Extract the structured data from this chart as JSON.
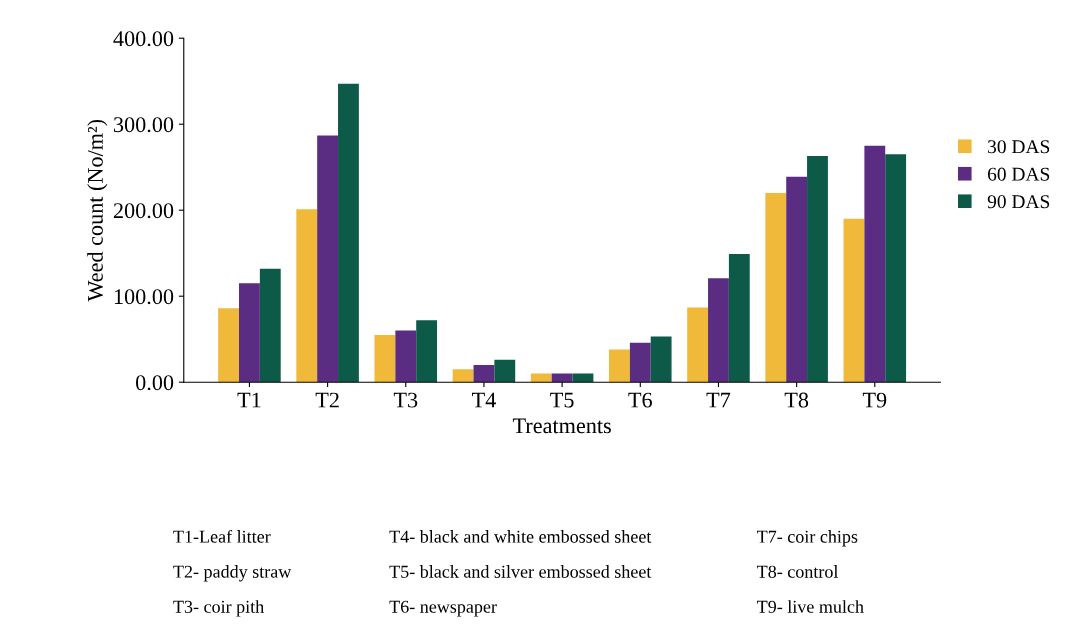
{
  "chart_data": {
    "type": "bar",
    "xlabel": "Treatments",
    "ylabel": "Weed count (No/m²)",
    "categories": [
      "T1",
      "T2",
      "T3",
      "T4",
      "T5",
      "T6",
      "T7",
      "T8",
      "T9"
    ],
    "series": [
      {
        "name": "30 DAS",
        "color": "#f0b93a",
        "values": [
          86,
          201,
          55,
          15,
          10,
          38,
          87,
          220,
          190
        ]
      },
      {
        "name": "60 DAS",
        "color": "#5b2d82",
        "values": [
          115,
          287,
          60,
          20,
          10,
          46,
          121,
          239,
          275
        ]
      },
      {
        "name": "90 DAS",
        "color": "#0d5a48",
        "values": [
          132,
          347,
          72,
          26,
          10,
          53,
          149,
          263,
          265
        ]
      }
    ],
    "ylim": [
      0,
      400
    ],
    "yticks": [
      {
        "value": 0,
        "label": "0.00"
      },
      {
        "value": 100,
        "label": "100.00"
      },
      {
        "value": 200,
        "label": "200.00"
      },
      {
        "value": 300,
        "label": "300.00"
      },
      {
        "value": 400,
        "label": "400.00"
      }
    ],
    "grid": false,
    "legend": "right",
    "annotations": [
      "T1-Leaf litter",
      "T2- paddy straw",
      "T3- coir pith",
      "T4- black and white embossed sheet",
      "T5- black and silver embossed sheet",
      "T6- newspaper",
      "T7- coir chips",
      "T8- control",
      "T9- live mulch"
    ]
  }
}
